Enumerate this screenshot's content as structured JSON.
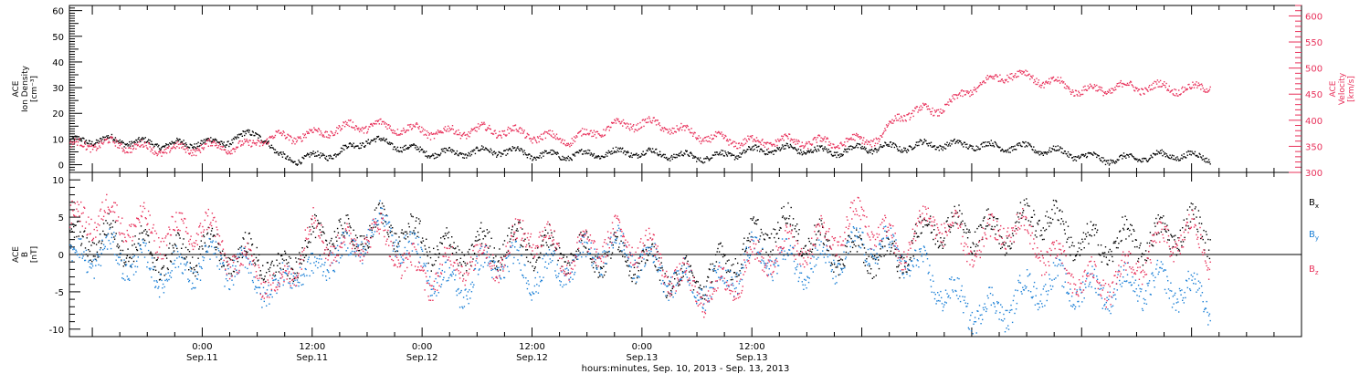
{
  "chart_data": [
    {
      "type": "scatter",
      "panel": "top",
      "ylabel_left": [
        "ACE",
        "Ion Density",
        "[cm⁻³]"
      ],
      "ylabel_right": [
        "ACE",
        "Velocity",
        "[km/s]"
      ],
      "y_left_lim": [
        -3,
        62
      ],
      "y_left_ticks": [
        0,
        10,
        20,
        30,
        40,
        50,
        60
      ],
      "y_right_lim": [
        300,
        620
      ],
      "y_right_ticks": [
        300,
        350,
        400,
        450,
        500,
        550,
        600
      ],
      "colors": {
        "density": "#000000",
        "velocity": "#e8305a"
      },
      "series": [
        {
          "key": "density",
          "axis": "left",
          "trend_hours": [
            0,
            2,
            4,
            6,
            7,
            8,
            10,
            12,
            15,
            18,
            20,
            24,
            30,
            36,
            42,
            48,
            54,
            60,
            66,
            68,
            72,
            76,
            80,
            84,
            88,
            92,
            96,
            100,
            104,
            108,
            110
          ],
          "trend_values": [
            9,
            8,
            10,
            12,
            10,
            4,
            3,
            4,
            5,
            9,
            8,
            6,
            5,
            4,
            5,
            4,
            4,
            5,
            6,
            6,
            7,
            6,
            8,
            9,
            7,
            5,
            4,
            3,
            3,
            3,
            3
          ]
        },
        {
          "key": "velocity",
          "axis": "right",
          "trend_hours": [
            0,
            3,
            5,
            6,
            8,
            12,
            16,
            20,
            24,
            30,
            36,
            40,
            44,
            48,
            52,
            56,
            60,
            62,
            66,
            70,
            72,
            74,
            76,
            80,
            82,
            84,
            88,
            92,
            96,
            100,
            104,
            108,
            110
          ],
          "trend_values": [
            350,
            345,
            345,
            360,
            370,
            380,
            385,
            385,
            385,
            380,
            370,
            370,
            385,
            390,
            385,
            370,
            355,
            355,
            360,
            365,
            365,
            365,
            405,
            420,
            440,
            470,
            490,
            470,
            460,
            470,
            460,
            455,
            470
          ]
        }
      ]
    },
    {
      "type": "scatter",
      "panel": "bottom",
      "ylabel_left": [
        "ACE",
        "B",
        "[nT]"
      ],
      "y_lim": [
        -11,
        11
      ],
      "y_ticks": [
        -10,
        -5,
        0,
        5,
        10
      ],
      "zero_line": true,
      "legend_placement": "right",
      "legend": [
        {
          "key": "Bx",
          "base": "B",
          "sub": "x",
          "color": "#000000"
        },
        {
          "key": "By",
          "base": "B",
          "sub": "y",
          "color": "#1a7fd6"
        },
        {
          "key": "Bz",
          "base": "B",
          "sub": "z",
          "color": "#e8305a"
        }
      ],
      "series": [
        {
          "key": "Bx",
          "trend_hours": [
            0,
            4,
            6,
            8,
            10,
            12,
            14,
            16,
            18,
            20,
            24,
            28,
            32,
            36,
            40,
            44,
            48,
            52,
            56,
            60,
            64,
            68,
            72,
            76,
            80,
            84,
            88,
            92,
            96,
            100,
            104,
            108,
            110
          ],
          "trend_values": [
            1,
            -2,
            0,
            -3,
            1,
            3,
            4,
            1,
            2,
            3,
            3,
            1,
            0,
            1,
            2,
            0,
            -2,
            -3,
            -1,
            1,
            3,
            2,
            1,
            -2,
            4,
            5,
            3,
            4,
            2,
            3,
            1,
            3,
            3
          ]
        },
        {
          "key": "By",
          "trend_hours": [
            0,
            4,
            6,
            8,
            10,
            12,
            14,
            16,
            18,
            20,
            24,
            28,
            32,
            36,
            40,
            44,
            48,
            52,
            56,
            60,
            64,
            68,
            72,
            76,
            80,
            84,
            88,
            92,
            96,
            100,
            104,
            108,
            110
          ],
          "trend_values": [
            -1,
            -3,
            -4,
            -5,
            0,
            -2,
            1,
            -1,
            2,
            3,
            0,
            -4,
            -2,
            -3,
            0,
            1,
            -2,
            -3,
            -3,
            -1,
            -2,
            0,
            2,
            -1,
            -4,
            -6,
            -7,
            -5,
            -4,
            -3,
            -5,
            -6,
            -6
          ]
        },
        {
          "key": "Bz",
          "trend_hours": [
            0,
            4,
            6,
            8,
            10,
            12,
            14,
            16,
            18,
            20,
            24,
            28,
            32,
            36,
            40,
            44,
            48,
            52,
            56,
            60,
            64,
            68,
            72,
            76,
            80,
            84,
            88,
            92,
            96,
            100,
            104,
            108,
            110
          ],
          "trend_values": [
            4,
            -3,
            -2,
            -5,
            0,
            5,
            2,
            0,
            2,
            1,
            -2,
            0,
            -2,
            3,
            1,
            2,
            0,
            -3,
            -4,
            -2,
            0,
            3,
            6,
            -1,
            5,
            2,
            4,
            -1,
            -3,
            -2,
            0,
            2,
            0
          ]
        }
      ]
    },
    {
      "type": "time_axis",
      "x_title": "hours:minutes, Sep. 10, 2013 - Sep. 13, 2013",
      "x_start_hours": -14.5,
      "x_end_hours": 120,
      "major_ticks": [
        {
          "hours": 0,
          "time": "0:00",
          "date": "Sep.11"
        },
        {
          "hours": 12,
          "time": "12:00",
          "date": "Sep.11"
        },
        {
          "hours": 24,
          "time": "0:00",
          "date": "Sep.12"
        },
        {
          "hours": 36,
          "time": "12:00",
          "date": "Sep.12"
        },
        {
          "hours": 48,
          "time": "0:00",
          "date": "Sep.13"
        },
        {
          "hours": 60,
          "time": "12:00",
          "date": "Sep.13"
        }
      ]
    }
  ]
}
